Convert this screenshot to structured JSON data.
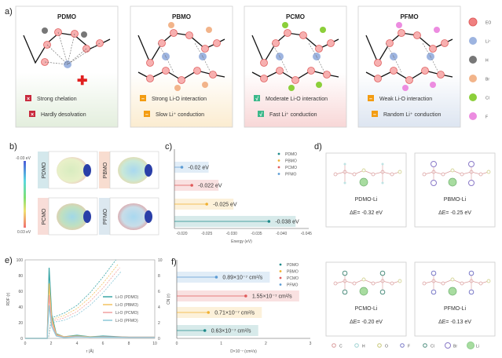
{
  "panel_labels": [
    "a)",
    "b)",
    "c)",
    "d)",
    "e)",
    "f)"
  ],
  "panel_a": {
    "boxes": [
      {
        "title": "PDMO",
        "items": [
          {
            "icon": "cross-icon",
            "text": "Strong chelation"
          },
          {
            "icon": "cross-icon",
            "text": "Hardly desolvation"
          }
        ],
        "bg": "#e3eedd"
      },
      {
        "title": "PBMO",
        "items": [
          {
            "icon": "minus-icon",
            "text": "Strong Li-O interaction"
          },
          {
            "icon": "minus-icon",
            "text": "Slow Li⁺ conduction"
          }
        ],
        "bg": "#fbecd0"
      },
      {
        "title": "PCMO",
        "items": [
          {
            "icon": "check-icon",
            "text": "Moderate Li-O interaction"
          },
          {
            "icon": "check-icon",
            "text": "Fast Li⁺ conduction"
          }
        ],
        "bg": "#f8d7d7"
      },
      {
        "title": "PFMO",
        "items": [
          {
            "icon": "minus-icon",
            "text": "Weak Li-O interaction"
          },
          {
            "icon": "minus-icon",
            "text": "Random Li⁺ conduction"
          }
        ],
        "bg": "#dde5f1"
      }
    ],
    "legend": [
      {
        "label": "EO",
        "color": "#f08080"
      },
      {
        "label": "Li⁺",
        "color": "#9db4e0"
      },
      {
        "label": "H",
        "color": "#777777"
      },
      {
        "label": "Br",
        "color": "#f2b48a"
      },
      {
        "label": "Cl",
        "color": "#8ccf3a"
      },
      {
        "label": "F",
        "color": "#ec8ce0"
      }
    ]
  },
  "panel_b": {
    "colorbar_top": "-0.03 eV",
    "colorbar_bottom": "0.03 eV",
    "molecules": [
      "PDMO",
      "PBMO",
      "PCMO",
      "PFMO"
    ]
  },
  "panel_d": {
    "cards": [
      {
        "name": "PDMO-Li",
        "energy": "ΔE= -0.32 eV"
      },
      {
        "name": "PBMO-Li",
        "energy": "ΔE= -0.25 eV"
      },
      {
        "name": "PCMO-Li",
        "energy": "ΔE= -0.20 eV"
      },
      {
        "name": "PFMO-Li",
        "energy": "ΔE= -0.13 eV"
      }
    ],
    "legend": [
      {
        "label": "C",
        "color": "#d99a9a"
      },
      {
        "label": "H",
        "color": "#9fd3d3"
      },
      {
        "label": "O",
        "color": "#c8c878"
      },
      {
        "label": "F",
        "color": "#7a7ac8"
      },
      {
        "label": "Cl",
        "color": "#4f8f7f"
      },
      {
        "label": "Br",
        "color": "#8a7ac8"
      },
      {
        "label": "Li",
        "color": "#8fcf8f"
      }
    ]
  },
  "chart_data": [
    {
      "id": "c",
      "type": "dot-bar",
      "xlabel": "Energy (eV)",
      "xlim": [
        -0.0185,
        -0.0455
      ],
      "xticks": [
        "-0.020",
        "-0.025",
        "-0.030",
        "-0.035",
        "-0.040",
        "-0.045"
      ],
      "legend_position": "top-right",
      "series": [
        {
          "name": "PFMO",
          "value": -0.02,
          "label": "-0.02 eV",
          "color": "#5b9bd5"
        },
        {
          "name": "PCMO",
          "value": -0.022,
          "label": "-0.022 eV",
          "color": "#e05a5a"
        },
        {
          "name": "PBMO",
          "value": -0.025,
          "label": "-0.025 eV",
          "color": "#f0b030"
        },
        {
          "name": "PDMO",
          "value": -0.0375,
          "label": "-0.038 eV",
          "color": "#1f8a8a"
        }
      ],
      "legend_order": [
        "PDMO",
        "PBMO",
        "PCMO",
        "PFMO"
      ]
    },
    {
      "id": "e",
      "type": "line",
      "xlabel": "r (Å)",
      "ylabel": "RDF (r)",
      "y2label": "CN (r)",
      "xlim": [
        0,
        10
      ],
      "ylim": [
        0,
        100
      ],
      "y2lim": [
        0,
        10
      ],
      "xticks": [
        "0",
        "2",
        "4",
        "6",
        "8",
        "10"
      ],
      "yticks": [
        "0",
        "20",
        "40",
        "60",
        "80",
        "100"
      ],
      "y2ticks": [
        "0",
        "2",
        "4",
        "6",
        "8",
        "10"
      ],
      "legend_position": "right",
      "series": [
        {
          "name": "Li-O (PDMO)",
          "color": "#3aa6a6",
          "rdf": [
            [
              0,
              0
            ],
            [
              1.7,
              0
            ],
            [
              1.85,
              90
            ],
            [
              2.05,
              30
            ],
            [
              2.4,
              6
            ],
            [
              3,
              2
            ],
            [
              4,
              4
            ],
            [
              5,
              2
            ],
            [
              6,
              3
            ],
            [
              8,
              1.5
            ],
            [
              10,
              1.5
            ]
          ],
          "cn": [
            [
              0,
              0
            ],
            [
              1.8,
              0
            ],
            [
              2,
              2.6
            ],
            [
              3,
              3.2
            ],
            [
              4,
              4.2
            ],
            [
              5,
              5.8
            ],
            [
              6,
              7.8
            ],
            [
              7,
              10
            ]
          ]
        },
        {
          "name": "Li-O (PBMO)",
          "color": "#f2c260",
          "rdf": [
            [
              0,
              0
            ],
            [
              1.7,
              0
            ],
            [
              1.85,
              70
            ],
            [
              2.05,
              25
            ],
            [
              2.4,
              5
            ],
            [
              3,
              2
            ],
            [
              4,
              3
            ],
            [
              5,
              2
            ],
            [
              6,
              2
            ],
            [
              8,
              1.5
            ],
            [
              10,
              1.5
            ]
          ],
          "cn": [
            [
              0,
              0
            ],
            [
              1.8,
              0
            ],
            [
              2,
              2.4
            ],
            [
              3,
              2.9
            ],
            [
              4,
              3.8
            ],
            [
              5,
              5.2
            ],
            [
              6,
              7
            ],
            [
              7.2,
              9.5
            ]
          ]
        },
        {
          "name": "Li-O (PCMO)",
          "color": "#f0a0a0",
          "rdf": [
            [
              0,
              0
            ],
            [
              1.7,
              0
            ],
            [
              1.85,
              55
            ],
            [
              2.05,
              20
            ],
            [
              2.4,
              4
            ],
            [
              3,
              1.5
            ],
            [
              4,
              2.5
            ],
            [
              5,
              1.5
            ],
            [
              6,
              2
            ],
            [
              8,
              1.5
            ],
            [
              10,
              1.5
            ]
          ],
          "cn": [
            [
              0,
              0
            ],
            [
              1.8,
              0
            ],
            [
              2,
              2.2
            ],
            [
              3,
              2.6
            ],
            [
              4,
              3.4
            ],
            [
              5,
              4.7
            ],
            [
              6,
              6.4
            ],
            [
              7.3,
              9
            ]
          ]
        },
        {
          "name": "Li-O (PFMO)",
          "color": "#8cc8d8",
          "rdf": [
            [
              0,
              0
            ],
            [
              1.7,
              0
            ],
            [
              1.85,
              42
            ],
            [
              2.05,
              15
            ],
            [
              2.4,
              3
            ],
            [
              3,
              1
            ],
            [
              4,
              2
            ],
            [
              5,
              1.5
            ],
            [
              6,
              1.5
            ],
            [
              8,
              1.2
            ],
            [
              10,
              1.2
            ]
          ],
          "cn": [
            [
              0,
              0
            ],
            [
              1.8,
              0
            ],
            [
              2,
              2
            ],
            [
              3,
              2.3
            ],
            [
              4,
              3
            ],
            [
              5,
              4.2
            ],
            [
              6,
              5.8
            ],
            [
              7.4,
              8.5
            ]
          ]
        }
      ]
    },
    {
      "id": "f",
      "type": "dot-bar",
      "xlabel": "D×10⁻⁷ (cm²/s)",
      "xlim": [
        0,
        3
      ],
      "xticks": [
        "0",
        "1",
        "2",
        "3"
      ],
      "legend_position": "top-right",
      "series": [
        {
          "name": "PFMO",
          "value": 0.89,
          "label": "0.89×10⁻⁷ cm²/s",
          "color": "#5b9bd5"
        },
        {
          "name": "PCMO",
          "value": 1.55,
          "label": "1.55×10⁻⁷ cm²/s",
          "color": "#e05a5a"
        },
        {
          "name": "PBMO",
          "value": 0.71,
          "label": "0.71×10⁻⁷ cm²/s",
          "color": "#f0b030"
        },
        {
          "name": "PDMO",
          "value": 0.63,
          "label": "0.63×10⁻⁷ cm²/s",
          "color": "#1f8a8a"
        }
      ],
      "legend_order": [
        "PDMO",
        "PBMO",
        "PCMO",
        "PFMO"
      ]
    }
  ]
}
